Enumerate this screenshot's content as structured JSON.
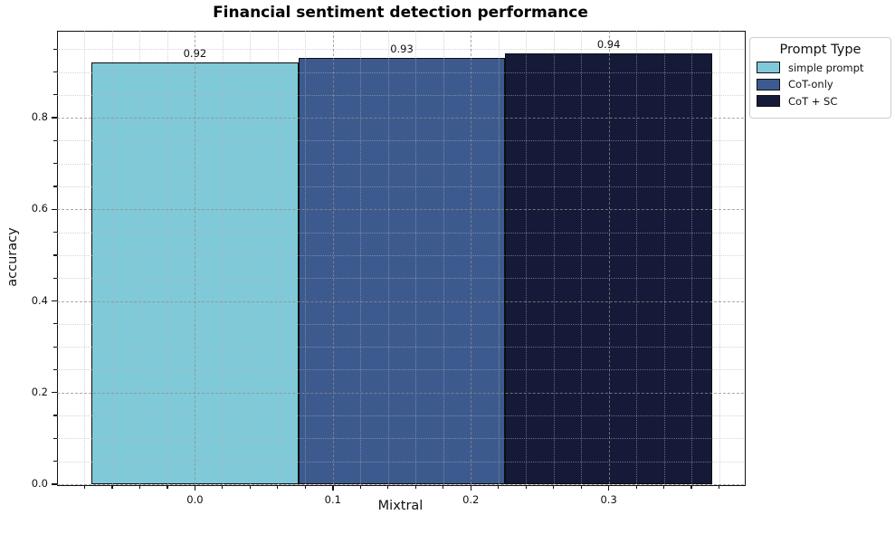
{
  "chart_data": {
    "type": "bar",
    "title": "Financial sentiment detection performance",
    "xlabel": "Mixtral",
    "ylabel": "accuracy",
    "categories": [
      "Mixtral"
    ],
    "series": [
      {
        "name": "simple prompt",
        "values": [
          0.92
        ],
        "value_label": "0.92",
        "color": "#80c9d8"
      },
      {
        "name": "CoT-only",
        "values": [
          0.93
        ],
        "value_label": "0.93",
        "color": "#3d5a8f"
      },
      {
        "name": "CoT + SC",
        "values": [
          0.94
        ],
        "value_label": "0.94",
        "color": "#151a38"
      }
    ],
    "bar_centers": [
      0,
      0.15,
      0.3
    ],
    "bar_width": 0.15,
    "bar_edge_color": "#0d0d0d",
    "xlim": [
      -0.1,
      0.398
    ],
    "ylim": [
      0,
      0.99
    ],
    "x_ticks": [
      0,
      0.1,
      0.2,
      0.3
    ],
    "x_tick_labels": [
      "0.0",
      "0.1",
      "0.2",
      "0.3"
    ],
    "y_ticks": [
      0,
      0.2,
      0.4,
      0.6,
      0.8
    ],
    "y_tick_labels": [
      "0.0",
      "0.2",
      "0.4",
      "0.6",
      "0.8"
    ],
    "x_minor_step": 0.02,
    "y_minor_step": 0.05,
    "grid": {
      "major_style": "dashed",
      "minor_style": "dotted",
      "drawn_above_bars": true
    },
    "legend_position": "upper right, outside plot area"
  },
  "legend": {
    "title": "Prompt Type",
    "items": [
      {
        "label": "simple prompt",
        "color": "#80c9d8"
      },
      {
        "label": "CoT-only",
        "color": "#3d5a8f"
      },
      {
        "label": "CoT + SC",
        "color": "#151a38"
      }
    ]
  }
}
